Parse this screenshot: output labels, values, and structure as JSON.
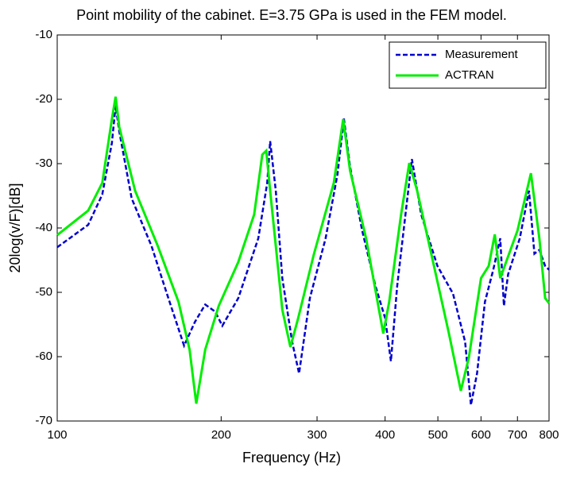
{
  "chart_data": {
    "type": "line",
    "title": "Point mobility of the cabinet. E=3.75 GPa is used in the FEM model.",
    "xlabel": "Frequency (Hz)",
    "ylabel": "20log(v/F)[dB]",
    "xscale": "log",
    "xlim": [
      100,
      800
    ],
    "xticks": [
      100,
      200,
      300,
      400,
      500,
      600,
      700,
      800
    ],
    "ylim": [
      -70,
      -10
    ],
    "yticks": [
      -70,
      -60,
      -50,
      -40,
      -30,
      -20,
      -10
    ],
    "legend": "upper right",
    "grid": false,
    "series": [
      {
        "name": "Measurement",
        "color": "#0000cc",
        "style": "dashed",
        "x": [
          100,
          114,
          121,
          126,
          128,
          130,
          137,
          149,
          159,
          171,
          179,
          187,
          195,
          201,
          215,
          234,
          243,
          246,
          252,
          259,
          270,
          278,
          291,
          311,
          327,
          336,
          345,
          363,
          384,
          400,
          410,
          421,
          436,
          448,
          466,
          499,
          533,
          561,
          575,
          590,
          610,
          632,
          651,
          661,
          673,
          707,
          735,
          752,
          768,
          787,
          800
        ],
        "values": [
          -43,
          -39.5,
          -34.8,
          -26.8,
          -21,
          -25,
          -35.4,
          -42.8,
          -50.2,
          -58.3,
          -54.6,
          -51.9,
          -53,
          -55.2,
          -50.9,
          -41.6,
          -33,
          -26.5,
          -34.2,
          -47.8,
          -57.7,
          -62.6,
          -50.9,
          -41.6,
          -31.7,
          -23,
          -30.5,
          -40.4,
          -49,
          -54,
          -60.7,
          -49,
          -37.9,
          -29.3,
          -37.9,
          -45.9,
          -50.2,
          -57.7,
          -67.5,
          -62.6,
          -51.5,
          -46.5,
          -41.6,
          -52.1,
          -47.2,
          -41.6,
          -34.2,
          -44,
          -43.4,
          -45.9,
          -46.5
        ]
      },
      {
        "name": "ACTRAN",
        "color": "#00ee00",
        "style": "solid",
        "x": [
          100,
          114,
          121,
          126,
          128,
          130,
          139,
          153,
          167,
          175,
          180,
          187,
          198,
          215,
          230,
          238,
          242,
          246,
          259,
          268,
          277,
          296,
          322,
          335,
          345,
          369,
          397,
          407,
          428,
          443,
          458,
          490,
          524,
          551,
          570,
          600,
          620,
          636,
          651,
          700,
          741,
          768,
          787,
          800
        ],
        "values": [
          -41.1,
          -37.3,
          -33,
          -23.1,
          -19.6,
          -24.3,
          -34.2,
          -42.8,
          -51.5,
          -58.9,
          -67.3,
          -58.9,
          -52.1,
          -45.3,
          -37.9,
          -28.6,
          -28,
          -34.2,
          -52.7,
          -58.5,
          -54,
          -44.1,
          -33,
          -23.1,
          -31.1,
          -41.6,
          -56.4,
          -51.5,
          -37.9,
          -29.9,
          -34.2,
          -45.3,
          -56.4,
          -65.3,
          -60.1,
          -47.8,
          -45.9,
          -41,
          -47.8,
          -40.4,
          -31.5,
          -41.6,
          -50.9,
          -51.7
        ]
      }
    ]
  }
}
